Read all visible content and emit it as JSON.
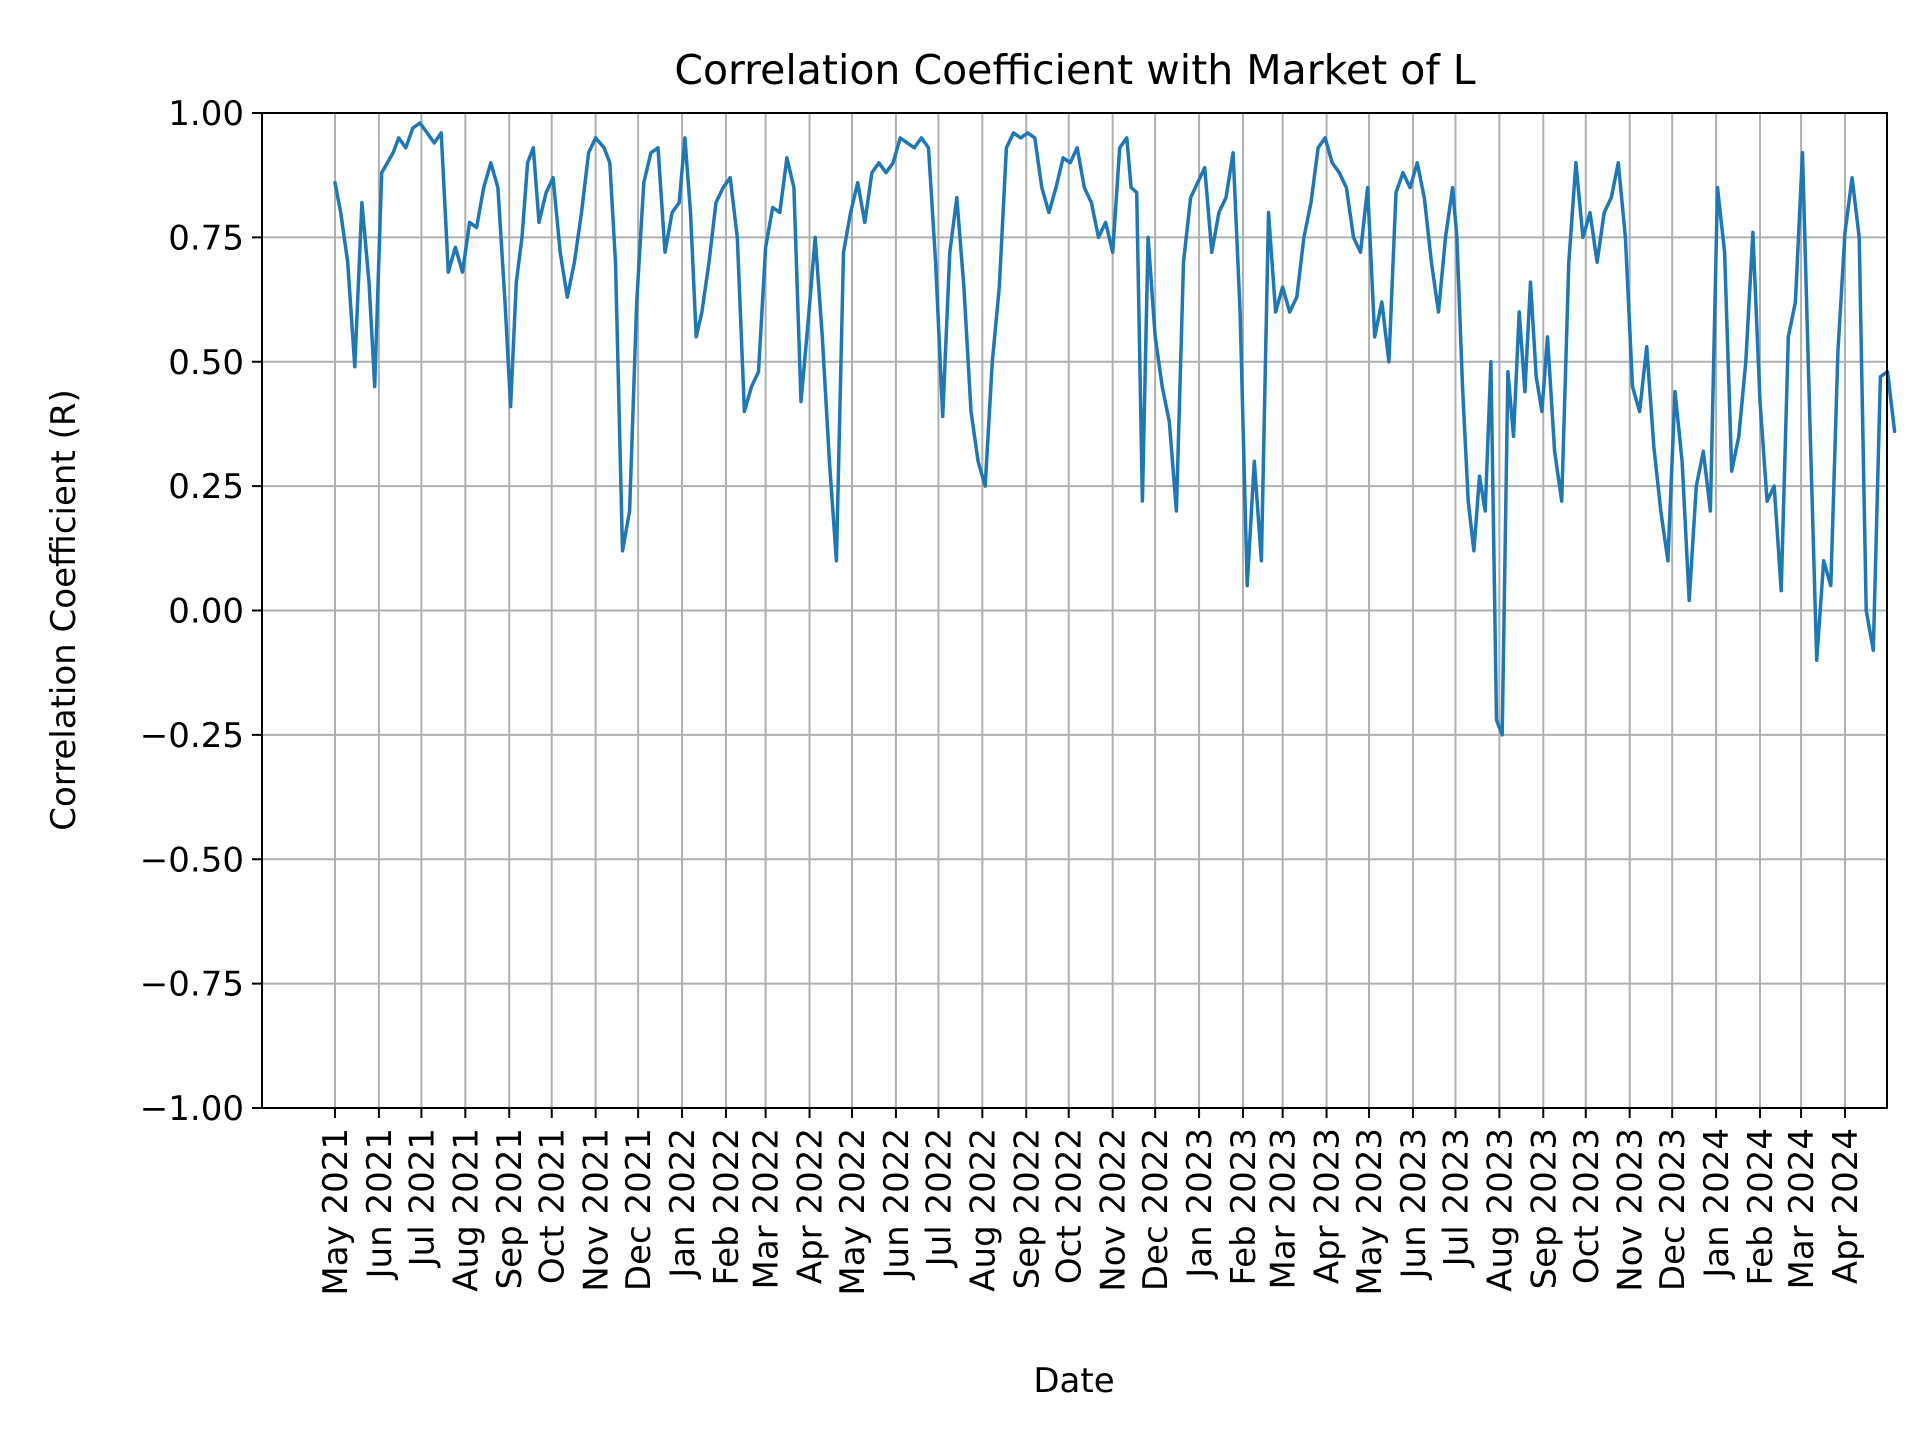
{
  "chart_data": {
    "type": "line",
    "title": "Correlation Coefficient with Market of L",
    "xlabel": "Date",
    "ylabel": "Correlation Coefficient (R)",
    "ylim": [
      -1.0,
      1.0
    ],
    "yticks": [
      "−1.00",
      "−0.75",
      "−0.50",
      "−0.25",
      "0.00",
      "0.25",
      "0.50",
      "0.75",
      "1.00"
    ],
    "xticks": [
      "May 2021",
      "Jun 2021",
      "Jul 2021",
      "Aug 2021",
      "Sep 2021",
      "Oct 2021",
      "Nov 2021",
      "Dec 2021",
      "Jan 2022",
      "Feb 2022",
      "Mar 2022",
      "Apr 2022",
      "May 2022",
      "Jun 2022",
      "Jul 2022",
      "Aug 2022",
      "Sep 2022",
      "Oct 2022",
      "Nov 2022",
      "Dec 2022",
      "Jan 2023",
      "Feb 2023",
      "Mar 2023",
      "Apr 2023",
      "May 2023",
      "Jun 2023",
      "Jul 2023",
      "Aug 2023",
      "Sep 2023",
      "Oct 2023",
      "Nov 2023",
      "Dec 2023",
      "Jan 2024",
      "Feb 2024",
      "Mar 2024",
      "Apr 2024"
    ],
    "grid": true,
    "line_color": "#1f77b4",
    "series": [
      {
        "x": [
          "2021-05-01",
          "2021-05-05",
          "2021-05-10",
          "2021-05-15",
          "2021-05-20",
          "2021-05-25",
          "2021-05-29",
          "2021-06-03",
          "2021-06-07",
          "2021-06-11",
          "2021-06-15",
          "2021-06-20",
          "2021-06-25",
          "2021-06-30",
          "2021-07-05",
          "2021-07-10",
          "2021-07-15",
          "2021-07-20",
          "2021-07-25",
          "2021-07-30",
          "2021-08-04",
          "2021-08-09",
          "2021-08-14",
          "2021-08-19",
          "2021-08-24",
          "2021-08-29",
          "2021-09-02",
          "2021-09-06",
          "2021-09-10",
          "2021-09-14",
          "2021-09-18",
          "2021-09-22",
          "2021-09-27",
          "2021-10-02",
          "2021-10-07",
          "2021-10-12",
          "2021-10-17",
          "2021-10-22",
          "2021-10-27",
          "2021-11-01",
          "2021-11-04",
          "2021-11-07",
          "2021-11-11",
          "2021-11-15",
          "2021-11-20",
          "2021-11-25",
          "2021-11-30",
          "2021-12-05",
          "2021-12-10",
          "2021-12-15",
          "2021-12-20",
          "2021-12-25",
          "2021-12-30",
          "2022-01-03",
          "2022-01-07",
          "2022-01-11",
          "2022-01-15",
          "2022-01-20",
          "2022-01-25",
          "2022-01-30",
          "2022-02-04",
          "2022-02-09",
          "2022-02-14",
          "2022-02-19",
          "2022-02-24",
          "2022-03-01",
          "2022-03-06",
          "2022-03-11",
          "2022-03-16",
          "2022-03-21",
          "2022-03-26",
          "2022-03-31",
          "2022-04-05",
          "2022-04-10",
          "2022-04-15",
          "2022-04-20",
          "2022-04-25",
          "2022-04-30",
          "2022-05-05",
          "2022-05-10",
          "2022-05-15",
          "2022-05-20",
          "2022-05-25",
          "2022-05-30",
          "2022-06-04",
          "2022-06-09",
          "2022-06-14",
          "2022-06-19",
          "2022-06-24",
          "2022-06-29",
          "2022-07-04",
          "2022-07-09",
          "2022-07-14",
          "2022-07-19",
          "2022-07-24",
          "2022-07-29",
          "2022-08-03",
          "2022-08-08",
          "2022-08-13",
          "2022-08-18",
          "2022-08-23",
          "2022-08-28",
          "2022-09-02",
          "2022-09-07",
          "2022-09-12",
          "2022-09-17",
          "2022-09-22",
          "2022-09-27",
          "2022-10-02",
          "2022-10-07",
          "2022-10-12",
          "2022-10-17",
          "2022-10-22",
          "2022-10-27",
          "2022-11-01",
          "2022-11-06",
          "2022-11-11",
          "2022-11-14",
          "2022-11-18",
          "2022-11-22",
          "2022-11-26",
          "2022-12-01",
          "2022-12-06",
          "2022-12-11",
          "2022-12-16",
          "2022-12-21",
          "2022-12-26",
          "2022-12-31",
          "2023-01-05",
          "2023-01-10",
          "2023-01-15",
          "2023-01-20",
          "2023-01-25",
          "2023-01-30",
          "2023-02-04",
          "2023-02-09",
          "2023-02-14",
          "2023-02-19",
          "2023-02-24",
          "2023-03-01",
          "2023-03-06",
          "2023-03-11",
          "2023-03-16",
          "2023-03-21",
          "2023-03-26",
          "2023-03-31",
          "2023-04-05",
          "2023-04-10",
          "2023-04-15",
          "2023-04-20",
          "2023-04-25",
          "2023-04-30",
          "2023-05-05",
          "2023-05-10",
          "2023-05-15",
          "2023-05-20",
          "2023-05-25",
          "2023-05-30",
          "2023-06-04",
          "2023-06-09",
          "2023-06-14",
          "2023-06-19",
          "2023-06-24",
          "2023-06-29",
          "2023-07-02",
          "2023-07-06",
          "2023-07-10",
          "2023-07-14",
          "2023-07-18",
          "2023-07-22",
          "2023-07-26",
          "2023-07-30",
          "2023-08-03",
          "2023-08-07",
          "2023-08-11",
          "2023-08-15",
          "2023-08-19",
          "2023-08-23",
          "2023-08-27",
          "2023-08-31",
          "2023-09-04",
          "2023-09-09",
          "2023-09-14",
          "2023-09-19",
          "2023-09-24",
          "2023-09-29",
          "2023-10-04",
          "2023-10-09",
          "2023-10-14",
          "2023-10-19",
          "2023-10-24",
          "2023-10-29",
          "2023-11-03",
          "2023-11-08",
          "2023-11-13",
          "2023-11-18",
          "2023-11-23",
          "2023-11-28",
          "2023-12-03",
          "2023-12-08",
          "2023-12-13",
          "2023-12-18",
          "2023-12-23",
          "2023-12-28",
          "2024-01-02",
          "2024-01-07",
          "2024-01-12",
          "2024-01-17",
          "2024-01-22",
          "2024-01-27",
          "2024-02-01",
          "2024-02-06",
          "2024-02-11",
          "2024-02-16",
          "2024-02-21",
          "2024-02-26",
          "2024-03-02",
          "2024-03-07",
          "2024-03-12",
          "2024-03-17",
          "2024-03-22",
          "2024-03-27",
          "2024-04-01",
          "2024-04-06",
          "2024-04-11",
          "2024-04-16",
          "2024-04-21",
          "2024-04-26",
          "2024-05-01",
          "2024-05-06"
        ],
        "y": [
          0.86,
          0.8,
          0.7,
          0.49,
          0.82,
          0.66,
          0.45,
          0.88,
          0.9,
          0.92,
          0.95,
          0.93,
          0.97,
          0.98,
          0.96,
          0.94,
          0.96,
          0.68,
          0.73,
          0.68,
          0.78,
          0.77,
          0.85,
          0.9,
          0.85,
          0.62,
          0.41,
          0.66,
          0.75,
          0.9,
          0.93,
          0.78,
          0.84,
          0.87,
          0.72,
          0.63,
          0.7,
          0.8,
          0.92,
          0.95,
          0.94,
          0.93,
          0.9,
          0.7,
          0.12,
          0.2,
          0.62,
          0.86,
          0.92,
          0.93,
          0.72,
          0.8,
          0.82,
          0.95,
          0.8,
          0.55,
          0.6,
          0.7,
          0.82,
          0.85,
          0.87,
          0.75,
          0.4,
          0.45,
          0.48,
          0.73,
          0.81,
          0.8,
          0.91,
          0.85,
          0.42,
          0.58,
          0.75,
          0.55,
          0.3,
          0.1,
          0.72,
          0.8,
          0.86,
          0.78,
          0.88,
          0.9,
          0.88,
          0.9,
          0.95,
          0.94,
          0.93,
          0.95,
          0.93,
          0.7,
          0.39,
          0.72,
          0.83,
          0.65,
          0.4,
          0.3,
          0.25,
          0.5,
          0.65,
          0.93,
          0.96,
          0.95,
          0.96,
          0.95,
          0.85,
          0.8,
          0.85,
          0.91,
          0.9,
          0.93,
          0.85,
          0.82,
          0.75,
          0.78,
          0.72,
          0.93,
          0.95,
          0.85,
          0.84,
          0.22,
          0.75,
          0.55,
          0.45,
          0.38,
          0.2,
          0.7,
          0.83,
          0.86,
          0.89,
          0.72,
          0.8,
          0.83,
          0.92,
          0.6,
          0.05,
          0.3,
          0.1,
          0.8,
          0.6,
          0.65,
          0.6,
          0.63,
          0.75,
          0.82,
          0.93,
          0.95,
          0.9,
          0.88,
          0.85,
          0.75,
          0.72,
          0.85,
          0.55,
          0.62,
          0.5,
          0.84,
          0.88,
          0.85,
          0.9,
          0.83,
          0.7,
          0.6,
          0.75,
          0.85,
          0.75,
          0.45,
          0.22,
          0.12,
          0.27,
          0.2,
          0.5,
          -0.22,
          -0.25,
          0.48,
          0.35,
          0.6,
          0.44,
          0.66,
          0.47,
          0.4,
          0.55,
          0.32,
          0.22,
          0.7,
          0.9,
          0.75,
          0.8,
          0.7,
          0.8,
          0.83,
          0.9,
          0.75,
          0.45,
          0.4,
          0.53,
          0.33,
          0.2,
          0.1,
          0.44,
          0.3,
          0.02,
          0.25,
          0.32,
          0.2,
          0.85,
          0.72,
          0.28,
          0.35,
          0.5,
          0.76,
          0.42,
          0.22,
          0.25,
          0.04,
          0.55,
          0.62,
          0.92,
          0.4,
          -0.1,
          0.1,
          0.05,
          0.52,
          0.76,
          0.87,
          0.75,
          0.0,
          -0.08,
          0.47,
          0.48,
          0.36
        ]
      }
    ]
  }
}
